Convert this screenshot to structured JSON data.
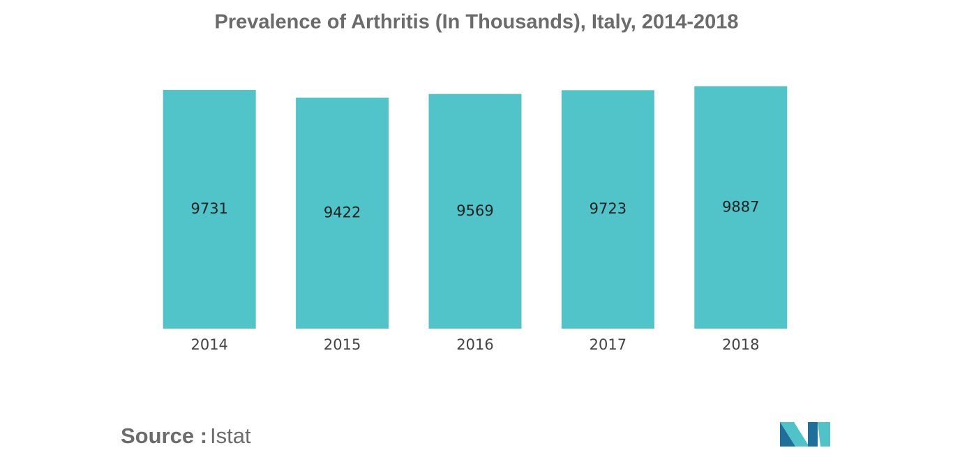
{
  "chart_data": {
    "type": "bar",
    "title": "Prevalence of Arthritis (In Thousands), Italy, 2014-2018",
    "categories": [
      "2014",
      "2015",
      "2016",
      "2017",
      "2018"
    ],
    "values": [
      9731,
      9422,
      9569,
      9723,
      9887
    ],
    "color": "#50c4c8",
    "source_label": "Source :",
    "source": "Istat"
  }
}
